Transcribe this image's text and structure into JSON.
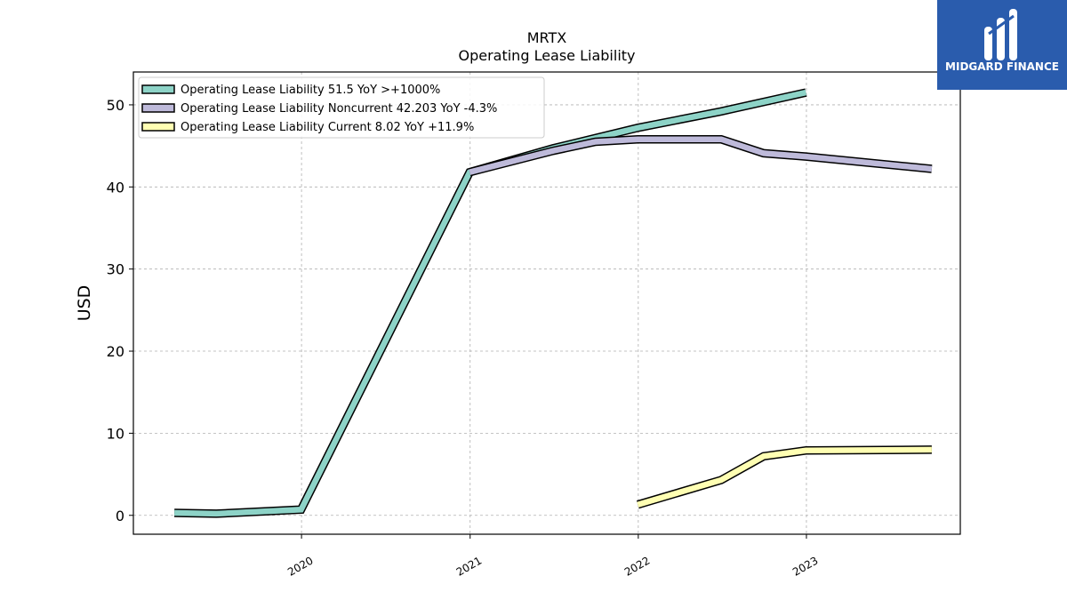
{
  "chart_data": {
    "type": "line",
    "title": "MRTX",
    "subtitle": "Operating Lease Liability",
    "ylabel": "USD",
    "xlabel": "",
    "ylim": [
      -2.3,
      54
    ],
    "xlim": [
      "2019-01-01",
      "2023-12-01"
    ],
    "yticks": [
      0,
      10,
      20,
      30,
      40,
      50
    ],
    "xticks": [
      "2020",
      "2021",
      "2022",
      "2023"
    ],
    "grid": true,
    "legend_position": "top-left",
    "series": [
      {
        "name": "Operating Lease Liability  51.5 YoY >+1000%",
        "color": "#8dd3c7",
        "points": [
          {
            "x": "2019-03-31",
            "y": 0.3
          },
          {
            "x": "2019-06-30",
            "y": 0.2
          },
          {
            "x": "2019-12-31",
            "y": 0.7
          },
          {
            "x": "2020-12-31",
            "y": 41.8
          },
          {
            "x": "2021-06-30",
            "y": 44.7
          },
          {
            "x": "2021-12-31",
            "y": 47.2
          },
          {
            "x": "2022-06-30",
            "y": 49.2
          },
          {
            "x": "2022-12-31",
            "y": 51.5
          }
        ]
      },
      {
        "name": "Operating Lease Liability Noncurrent  42.203 YoY -4.3%",
        "color": "#bebada",
        "points": [
          {
            "x": "2020-12-31",
            "y": 41.8
          },
          {
            "x": "2021-06-30",
            "y": 44.4
          },
          {
            "x": "2021-09-30",
            "y": 45.5
          },
          {
            "x": "2021-12-31",
            "y": 45.8
          },
          {
            "x": "2022-06-30",
            "y": 45.8
          },
          {
            "x": "2022-09-30",
            "y": 44.1
          },
          {
            "x": "2022-12-31",
            "y": 43.7
          },
          {
            "x": "2023-09-30",
            "y": 42.2
          }
        ]
      },
      {
        "name": "Operating Lease Liability Current  8.02 YoY +11.9%",
        "color": "#ffffb3",
        "points": [
          {
            "x": "2021-12-31",
            "y": 1.3
          },
          {
            "x": "2022-06-30",
            "y": 4.3
          },
          {
            "x": "2022-09-30",
            "y": 7.2
          },
          {
            "x": "2022-12-31",
            "y": 7.9
          },
          {
            "x": "2023-09-30",
            "y": 8.0
          }
        ]
      }
    ]
  },
  "logo": {
    "text": "MIDGARD FINANCE",
    "icon": "midgard-logo-icon",
    "background": "#2a5cad"
  }
}
